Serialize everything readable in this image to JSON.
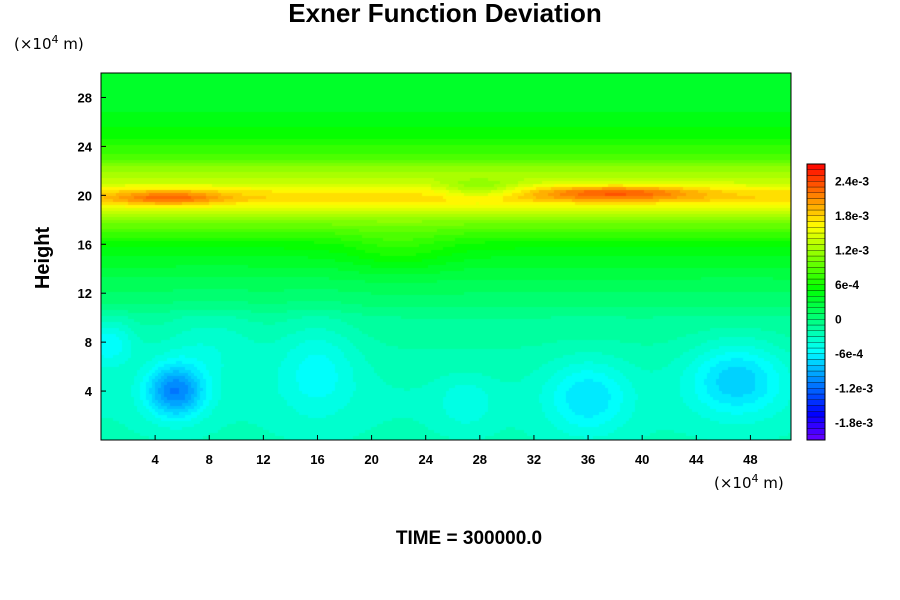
{
  "chart_data": {
    "type": "heatmap",
    "title": "Exner Function Deviation",
    "ylabel": "Height",
    "xlabel": "",
    "x_unit": {
      "pre": "(×10",
      "exp": "4",
      "post": " m)"
    },
    "y_unit": {
      "pre": "(×10",
      "exp": "4",
      "post": " m)"
    },
    "footer": "TIME = 300000.0",
    "xlim": [
      0,
      51
    ],
    "ylim": [
      0,
      30
    ],
    "x_ticks": [
      4,
      8,
      12,
      16,
      20,
      24,
      28,
      32,
      36,
      40,
      44,
      48
    ],
    "y_ticks": [
      4,
      8,
      12,
      16,
      20,
      24,
      28
    ],
    "colorbar": {
      "min": -0.0021,
      "max": 0.0027,
      "step": 0.0001,
      "tick_values": [
        0.0024,
        0.0018,
        0.0012,
        0.0006,
        0,
        -0.0006,
        -0.0012,
        -0.0018
      ],
      "tick_labels": [
        "2.4e-3",
        "1.8e-3",
        "1.2e-3",
        "6e-4",
        "0",
        "-6e-4",
        "-1.2e-3",
        "-1.8e-3"
      ]
    },
    "vertical_profile": {
      "height": [
        0,
        2,
        4,
        6,
        8,
        10,
        11,
        12,
        13,
        14,
        15,
        16,
        17,
        18,
        19,
        19.7,
        20.3,
        21,
        22,
        23,
        24,
        25,
        26,
        27,
        28,
        30
      ],
      "value": [
        -0.00028,
        -0.0003,
        -0.0003,
        -0.00025,
        -0.00018,
        -0.0001,
        2e-05,
        0.0001,
        0.00018,
        0.00028,
        0.0004,
        0.00055,
        0.0008,
        0.0011,
        0.0015,
        0.0018,
        0.0017,
        0.0014,
        0.0012,
        0.0009,
        0.0007,
        0.00055,
        0.00045,
        0.00038,
        0.00032,
        0.0003
      ]
    },
    "anomalies": [
      {
        "x": 5.5,
        "y": 4,
        "dx": 2.2,
        "dy": 2.2,
        "dv": -0.0008
      },
      {
        "x": 47,
        "y": 5,
        "dx": 3.5,
        "dy": 3,
        "dv": -0.0005
      },
      {
        "x": 36,
        "y": 3.5,
        "dx": 3,
        "dy": 3,
        "dv": -0.0004
      },
      {
        "x": 0.5,
        "y": 8,
        "dx": 2,
        "dy": 2,
        "dv": -0.0004
      },
      {
        "x": 16,
        "y": 6,
        "dx": 3,
        "dy": 4,
        "dv": -0.0003
      },
      {
        "x": 27,
        "y": 3,
        "dx": 2,
        "dy": 2,
        "dv": -0.0002
      },
      {
        "x": 8,
        "y": 8,
        "dx": 4,
        "dy": 3,
        "dv": -0.0002
      },
      {
        "x": 22,
        "y": 15.5,
        "dx": 4,
        "dy": 2,
        "dv": 0.0002
      },
      {
        "x": 5,
        "y": 19.8,
        "dx": 4,
        "dy": 0.6,
        "dv": 0.0005
      },
      {
        "x": 38,
        "y": 20.2,
        "dx": 6,
        "dy": 0.6,
        "dv": 0.0006
      },
      {
        "x": 28,
        "y": 20.5,
        "dx": 3,
        "dy": 0.8,
        "dv": -0.0004
      }
    ]
  }
}
